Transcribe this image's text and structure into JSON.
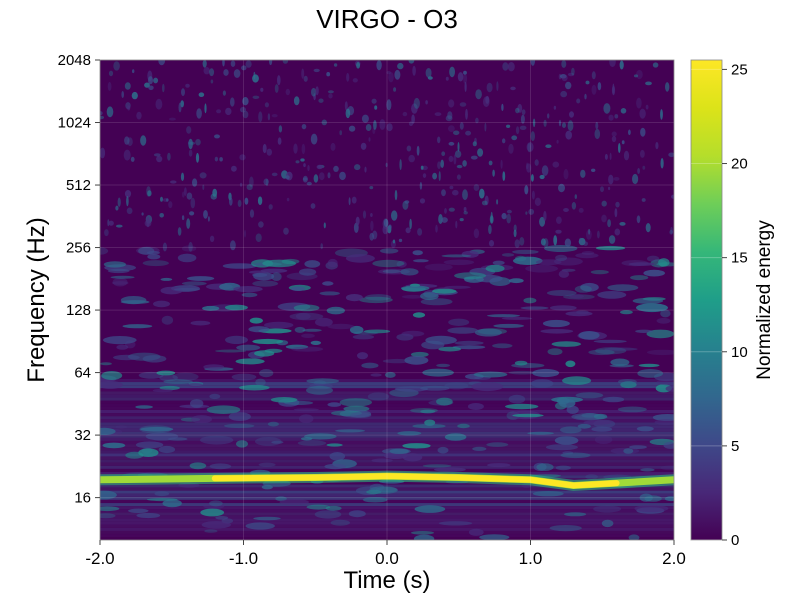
{
  "chart_data": {
    "type": "heatmap",
    "title": "VIRGO - O3",
    "xlabel": "Time (s)",
    "ylabel": "Frequency (Hz)",
    "colorbar_label": "Normalized energy",
    "xlim": [
      -2.0,
      2.0
    ],
    "ylim": [
      10,
      2048
    ],
    "yscale": "log2",
    "x_ticks": [
      "-2.0",
      "-1.0",
      "0.0",
      "1.0",
      "2.0"
    ],
    "y_ticks": [
      "16",
      "32",
      "64",
      "128",
      "256",
      "512",
      "1024",
      "2048"
    ],
    "colorbar_range": [
      0,
      25.5
    ],
    "colorbar_ticks": [
      "0",
      "5",
      "10",
      "15",
      "20",
      "25"
    ],
    "colormap": "viridis",
    "grid": true,
    "features": [
      {
        "type": "signal-track",
        "x": [
          -2.0,
          -1.2,
          -0.5,
          0.0,
          0.5,
          1.0,
          1.3,
          1.6,
          2.0
        ],
        "frequency": [
          19.5,
          19.8,
          20.0,
          20.3,
          20.0,
          19.5,
          18.3,
          18.8,
          19.5
        ],
        "peak_energy": 25
      }
    ]
  }
}
